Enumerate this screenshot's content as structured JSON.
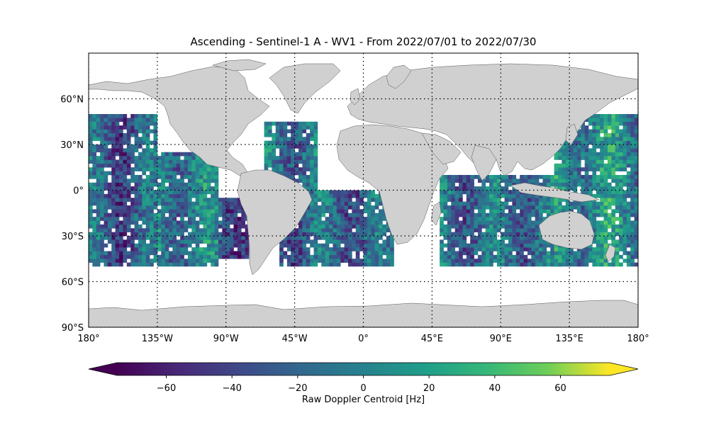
{
  "title": "Ascending - Sentinel-1 A - WV1 - From 2022/07/01 to 2022/07/30",
  "lat_ticks": [
    "60°N",
    "30°N",
    "0°",
    "30°S",
    "60°S",
    "90°S"
  ],
  "lat_values": [
    60,
    30,
    0,
    -30,
    -60,
    -90
  ],
  "lon_ticks": [
    "180°",
    "135°W",
    "90°W",
    "45°W",
    "0°",
    "45°E",
    "90°E",
    "135°E",
    "180°"
  ],
  "lon_values": [
    -180,
    -135,
    -90,
    -45,
    0,
    45,
    90,
    135,
    180
  ],
  "colorbar": {
    "label": "Raw Doppler Centroid [Hz]",
    "ticks": [
      "−60",
      "−40",
      "−20",
      "0",
      "20",
      "40",
      "60"
    ],
    "tick_values": [
      -60,
      -40,
      -20,
      0,
      20,
      40,
      60
    ],
    "vmin": -75,
    "vmax": 75,
    "colormap": "viridis",
    "extend": "both"
  },
  "colors": {
    "land": "#d0d0d0",
    "coast": "#555555",
    "grid": "#000000"
  },
  "map_data": {
    "projection": "PlateCarree",
    "lon_range": [
      -180,
      180
    ],
    "lat_range": [
      -90,
      90
    ],
    "gridlines": "dotted",
    "data_lat_range": [
      -50,
      50
    ],
    "swaths": [
      {
        "region": "north-east-pacific",
        "lon": [
          -180,
          -135
        ],
        "lat": [
          -50,
          50
        ],
        "mean": -25
      },
      {
        "region": "central-pacific",
        "lon": [
          -135,
          -95
        ],
        "lat": [
          -50,
          25
        ],
        "mean": -5
      },
      {
        "region": "south-east-pacific",
        "lon": [
          -95,
          -75
        ],
        "lat": [
          -45,
          -5
        ],
        "mean": -30
      },
      {
        "region": "north-atlantic",
        "lon": [
          -65,
          -30
        ],
        "lat": [
          0,
          45
        ],
        "mean": -10
      },
      {
        "region": "south-atlantic",
        "lon": [
          -55,
          20
        ],
        "lat": [
          -50,
          0
        ],
        "mean": -20
      },
      {
        "region": "indian-ocean",
        "lon": [
          50,
          130
        ],
        "lat": [
          -50,
          10
        ],
        "mean": -15
      },
      {
        "region": "western-pacific",
        "lon": [
          125,
          180
        ],
        "lat": [
          -50,
          50
        ],
        "mean": 5
      }
    ]
  }
}
